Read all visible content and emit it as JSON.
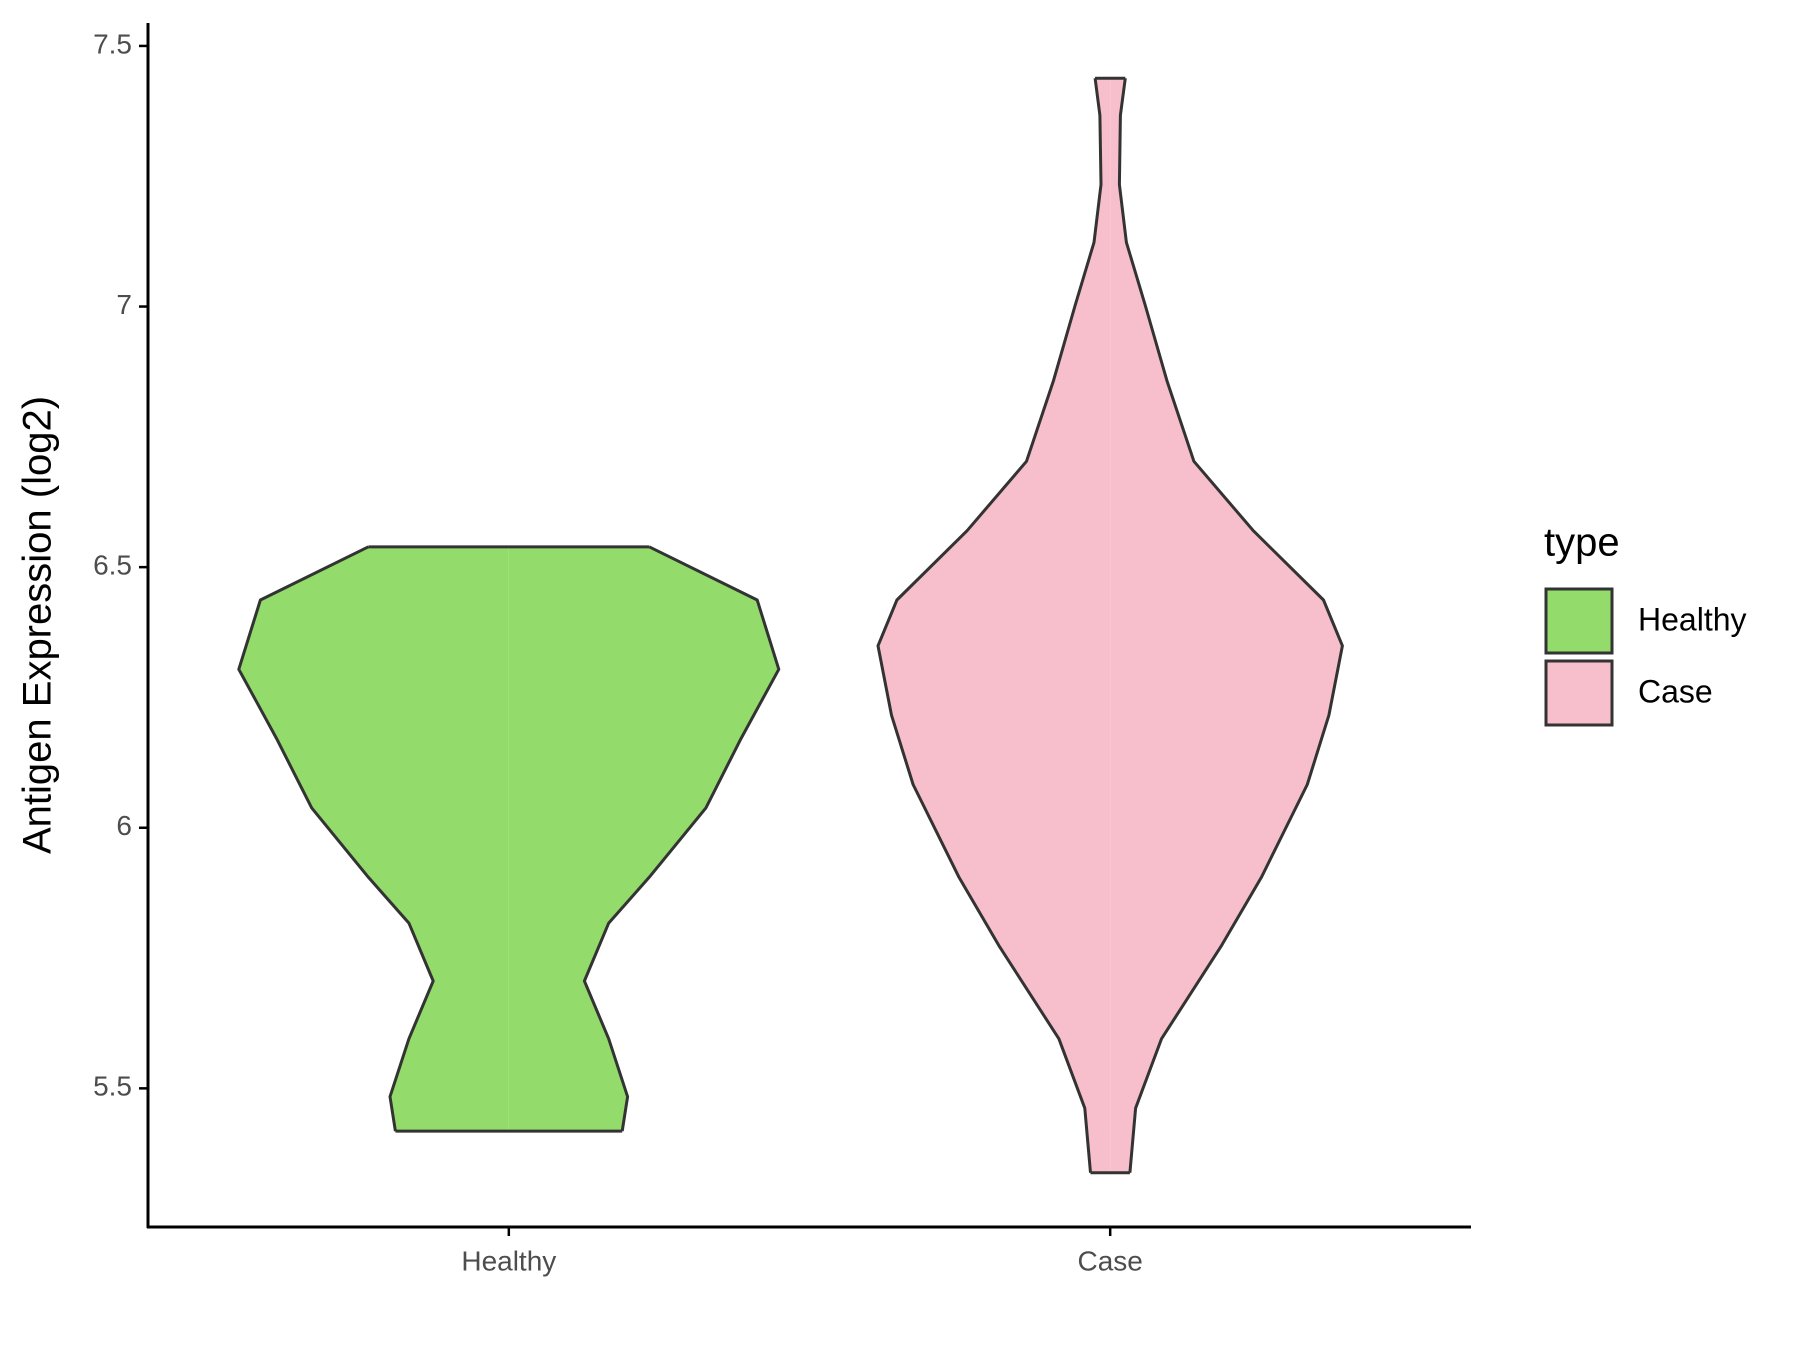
{
  "chart_data": {
    "type": "violin",
    "y_label": "Antigen Expression (log2)",
    "categories": [
      "Healthy",
      "Case"
    ],
    "ylim": [
      5.234,
      7.544
    ],
    "yticks": [
      5.5,
      6.0,
      6.5,
      7.0,
      7.5
    ],
    "legend_title": "type",
    "series": [
      {
        "name": "Healthy",
        "color": "#93dc6b",
        "y": [
          6.539,
          6.437,
          6.304,
          6.171,
          6.038,
          5.905,
          5.817,
          5.706,
          5.595,
          5.484,
          5.418
        ],
        "density": [
          0.52,
          0.92,
          1.0,
          0.86,
          0.73,
          0.52,
          0.37,
          0.28,
          0.37,
          0.44,
          0.42
        ]
      },
      {
        "name": "Case",
        "color": "#f7bfcb",
        "y": [
          7.438,
          7.367,
          7.234,
          7.123,
          7.002,
          6.858,
          6.703,
          6.57,
          6.437,
          6.349,
          6.216,
          6.083,
          5.905,
          5.772,
          5.595,
          5.462,
          5.338
        ],
        "density": [
          0.056,
          0.038,
          0.034,
          0.06,
          0.13,
          0.21,
          0.31,
          0.53,
          0.79,
          0.86,
          0.81,
          0.73,
          0.56,
          0.41,
          0.19,
          0.094,
          0.073
        ]
      }
    ]
  }
}
